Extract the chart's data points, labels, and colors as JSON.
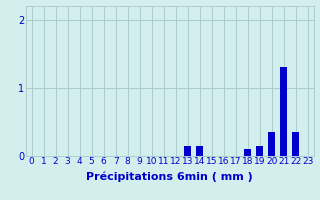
{
  "hours": [
    0,
    1,
    2,
    3,
    4,
    5,
    6,
    7,
    8,
    9,
    10,
    11,
    12,
    13,
    14,
    15,
    16,
    17,
    18,
    19,
    20,
    21,
    22,
    23
  ],
  "values": [
    0,
    0,
    0,
    0,
    0,
    0,
    0,
    0,
    0,
    0,
    0,
    0,
    0,
    0.15,
    0.15,
    0,
    0,
    0,
    0.1,
    0.15,
    0.35,
    1.3,
    0.35,
    0
  ],
  "bar_color": "#0000cc",
  "bg_color": "#d4eeee",
  "grid_color": "#aacccc",
  "tick_color": "#0000cc",
  "label_color": "#0000cc",
  "xlabel": "Précipitations 6min ( mm )",
  "ylim": [
    0,
    2.2
  ],
  "yticks": [
    0,
    1,
    2
  ],
  "xlabel_fontsize": 8,
  "tick_fontsize": 6.5
}
